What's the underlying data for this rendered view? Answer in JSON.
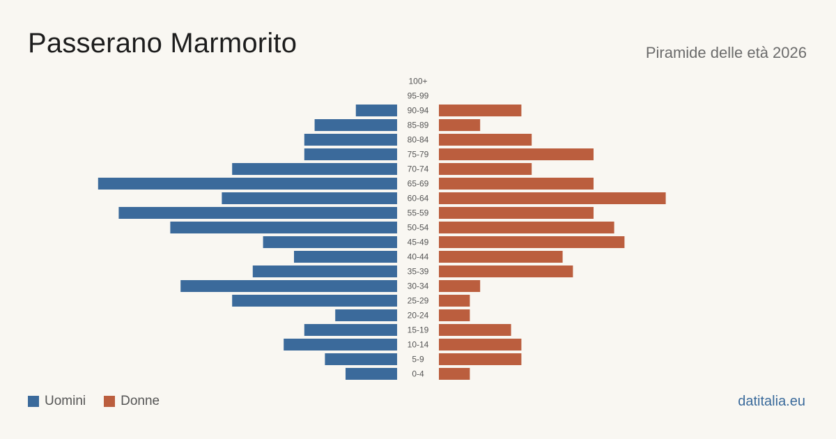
{
  "title": "Passerano Marmorito",
  "subtitle": "Piramide delle età 2026",
  "brand": "datitalia.eu",
  "colors": {
    "men": "#3b6a9b",
    "women": "#bb5e3e",
    "age_label": "#555555",
    "background": "#f9f7f2"
  },
  "legend": {
    "men_label": "Uomini",
    "women_label": "Donne"
  },
  "chart_data": {
    "type": "bar",
    "orientation": "horizontal-diverging",
    "title": "Passerano Marmorito",
    "subtitle": "Piramide delle età 2026",
    "categories": [
      "100+",
      "95-99",
      "90-94",
      "85-89",
      "80-84",
      "75-79",
      "70-74",
      "65-69",
      "60-64",
      "55-59",
      "50-54",
      "45-49",
      "40-44",
      "35-39",
      "30-34",
      "25-29",
      "20-24",
      "15-19",
      "10-14",
      "5-9",
      "0-4"
    ],
    "series": [
      {
        "name": "Uomini",
        "values": [
          0,
          0,
          4,
          8,
          9,
          9,
          16,
          29,
          17,
          27,
          22,
          13,
          10,
          14,
          21,
          16,
          6,
          9,
          11,
          7,
          5
        ]
      },
      {
        "name": "Donne",
        "values": [
          0,
          0,
          8,
          4,
          9,
          15,
          9,
          15,
          22,
          15,
          17,
          18,
          12,
          13,
          4,
          3,
          3,
          7,
          8,
          8,
          3
        ]
      }
    ],
    "legend_position": "bottom-left",
    "grid": false
  }
}
